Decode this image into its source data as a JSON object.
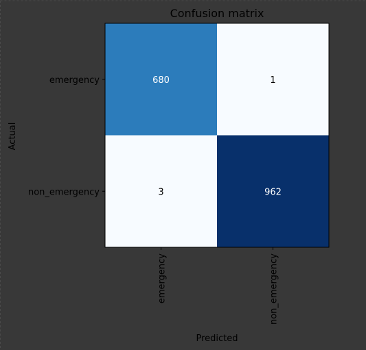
{
  "chart_data": {
    "type": "heatmap",
    "title": "Confusion matrix",
    "xlabel": "Predicted",
    "ylabel": "Actual",
    "x_categories": [
      "emergency",
      "non_emergency"
    ],
    "y_categories": [
      "emergency",
      "non_emergency"
    ],
    "values": [
      [
        680,
        1
      ],
      [
        3,
        962
      ]
    ],
    "colormap": "Blues",
    "colors": {
      "background": "#383838",
      "text_dark": "#000000",
      "text_light": "#ffffff",
      "axis": "#000000"
    }
  }
}
